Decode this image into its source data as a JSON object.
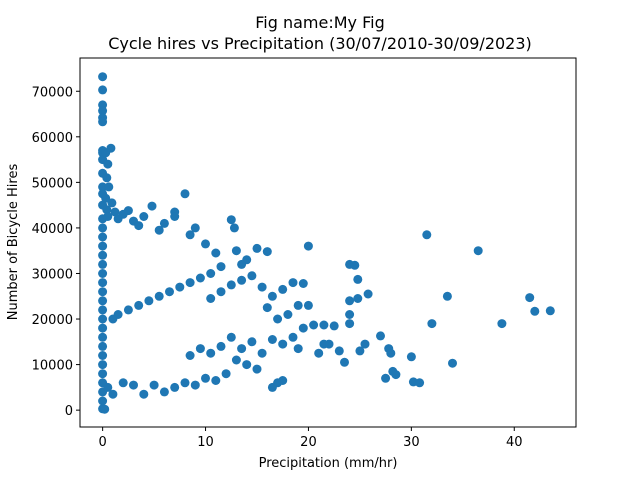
{
  "chart_data": {
    "type": "scatter",
    "title_line1": "Fig name:My Fig",
    "title_line2": "Cycle hires vs Precipitation (30/07/2010-30/09/2023)",
    "xlabel": "Precipitation (mm/hr)",
    "ylabel": "Number of Bicycle Hires",
    "xlim": [
      -2.2,
      46
    ],
    "ylim": [
      -3700,
      77300
    ],
    "xticks": [
      0,
      10,
      20,
      30,
      40
    ],
    "yticks": [
      0,
      10000,
      20000,
      30000,
      40000,
      50000,
      60000,
      70000
    ],
    "xtick_labels": [
      "0",
      "10",
      "20",
      "30",
      "40"
    ],
    "ytick_labels": [
      "0",
      "10000",
      "20000",
      "30000",
      "40000",
      "50000",
      "60000",
      "70000"
    ],
    "grid": false,
    "marker_color": "#1f77b4",
    "points": [
      [
        0,
        73200
      ],
      [
        0,
        70300
      ],
      [
        0,
        67000
      ],
      [
        0,
        65700
      ],
      [
        0,
        64200
      ],
      [
        0,
        63300
      ],
      [
        0,
        57000
      ],
      [
        0,
        56500
      ],
      [
        0,
        55000
      ],
      [
        0,
        52000
      ],
      [
        0,
        49000
      ],
      [
        0,
        47500
      ],
      [
        0,
        45000
      ],
      [
        0,
        42000
      ],
      [
        0,
        40000
      ],
      [
        0,
        38000
      ],
      [
        0,
        36000
      ],
      [
        0,
        34000
      ],
      [
        0,
        32000
      ],
      [
        0,
        30000
      ],
      [
        0,
        28000
      ],
      [
        0,
        26000
      ],
      [
        0,
        24000
      ],
      [
        0,
        22000
      ],
      [
        0,
        20000
      ],
      [
        0,
        18000
      ],
      [
        0,
        16000
      ],
      [
        0,
        14000
      ],
      [
        0,
        12000
      ],
      [
        0,
        10000
      ],
      [
        0,
        8000
      ],
      [
        0,
        6000
      ],
      [
        0,
        4000
      ],
      [
        0,
        2000
      ],
      [
        0,
        300
      ],
      [
        0.2,
        200
      ],
      [
        0.3,
        56500
      ],
      [
        0.5,
        54000
      ],
      [
        0.8,
        57500
      ],
      [
        0.4,
        51000
      ],
      [
        0.6,
        49000
      ],
      [
        0.3,
        46500
      ],
      [
        0.9,
        45500
      ],
      [
        0.4,
        44000
      ],
      [
        1.2,
        43500
      ],
      [
        0.5,
        42500
      ],
      [
        1.5,
        42000
      ],
      [
        2.0,
        43000
      ],
      [
        2.5,
        43800
      ],
      [
        3.0,
        41500
      ],
      [
        3.5,
        40500
      ],
      [
        4.0,
        42500
      ],
      [
        4.8,
        44800
      ],
      [
        5.5,
        39500
      ],
      [
        6.0,
        41000
      ],
      [
        7.0,
        43500
      ],
      [
        7.0,
        42500
      ],
      [
        8.0,
        47500
      ],
      [
        8.5,
        38500
      ],
      [
        9.0,
        40000
      ],
      [
        10.0,
        36500
      ],
      [
        11.0,
        34500
      ],
      [
        12.5,
        41800
      ],
      [
        12.8,
        40000
      ],
      [
        13.0,
        35000
      ],
      [
        14.0,
        33000
      ],
      [
        15.0,
        35500
      ],
      [
        16.0,
        34800
      ],
      [
        13.5,
        32000
      ],
      [
        11.5,
        31500
      ],
      [
        10.5,
        30000
      ],
      [
        9.5,
        29000
      ],
      [
        8.5,
        28000
      ],
      [
        7.5,
        27000
      ],
      [
        6.5,
        26000
      ],
      [
        5.5,
        25000
      ],
      [
        4.5,
        24000
      ],
      [
        3.5,
        23000
      ],
      [
        2.5,
        22000
      ],
      [
        1.5,
        21000
      ],
      [
        1.0,
        20000
      ],
      [
        16.5,
        25000
      ],
      [
        17.5,
        26500
      ],
      [
        18.5,
        28000
      ],
      [
        19.5,
        27800
      ],
      [
        20.0,
        36000
      ],
      [
        19.0,
        23000
      ],
      [
        18.0,
        21000
      ],
      [
        17.0,
        20000
      ],
      [
        16.0,
        22500
      ],
      [
        15.5,
        27000
      ],
      [
        14.5,
        29500
      ],
      [
        13.5,
        28500
      ],
      [
        12.5,
        27500
      ],
      [
        11.5,
        26000
      ],
      [
        10.5,
        24500
      ],
      [
        20.5,
        18700
      ],
      [
        21.0,
        12500
      ],
      [
        21.5,
        18700
      ],
      [
        22.0,
        14500
      ],
      [
        23.0,
        13000
      ],
      [
        23.5,
        10500
      ],
      [
        24.0,
        32000
      ],
      [
        24.0,
        24000
      ],
      [
        24.0,
        21000
      ],
      [
        24.0,
        19000
      ],
      [
        24.5,
        31800
      ],
      [
        24.8,
        28700
      ],
      [
        24.8,
        24500
      ],
      [
        25.0,
        13000
      ],
      [
        25.5,
        14500
      ],
      [
        25.8,
        25500
      ],
      [
        27.0,
        16300
      ],
      [
        27.5,
        7000
      ],
      [
        27.8,
        13500
      ],
      [
        28.0,
        12500
      ],
      [
        28.2,
        8500
      ],
      [
        28.5,
        7800
      ],
      [
        30.0,
        11700
      ],
      [
        30.2,
        6200
      ],
      [
        30.8,
        6000
      ],
      [
        31.5,
        38500
      ],
      [
        32.0,
        19000
      ],
      [
        33.5,
        25000
      ],
      [
        34.0,
        10300
      ],
      [
        36.5,
        35000
      ],
      [
        38.8,
        19000
      ],
      [
        41.5,
        24700
      ],
      [
        42.0,
        21700
      ],
      [
        43.5,
        21800
      ],
      [
        17.0,
        6000
      ],
      [
        17.5,
        6500
      ],
      [
        16.5,
        5000
      ],
      [
        15.0,
        9000
      ],
      [
        14.0,
        10000
      ],
      [
        13.0,
        11000
      ],
      [
        12.0,
        8000
      ],
      [
        11.0,
        6500
      ],
      [
        10.0,
        7000
      ],
      [
        9.0,
        5500
      ],
      [
        8.0,
        6000
      ],
      [
        7.0,
        5000
      ],
      [
        6.0,
        4000
      ],
      [
        5.0,
        5500
      ],
      [
        4.0,
        3500
      ],
      [
        3.0,
        5500
      ],
      [
        2.0,
        6000
      ],
      [
        1.0,
        3500
      ],
      [
        0.5,
        5000
      ],
      [
        19.0,
        13500
      ],
      [
        18.5,
        16000
      ],
      [
        17.5,
        14500
      ],
      [
        16.5,
        15500
      ],
      [
        15.5,
        12500
      ],
      [
        14.5,
        15000
      ],
      [
        13.5,
        13500
      ],
      [
        12.5,
        16000
      ],
      [
        11.5,
        14000
      ],
      [
        10.5,
        12500
      ],
      [
        9.5,
        13500
      ],
      [
        8.5,
        12000
      ],
      [
        22.5,
        18500
      ],
      [
        21.5,
        14500
      ],
      [
        20.0,
        23000
      ],
      [
        19.5,
        18000
      ]
    ]
  }
}
